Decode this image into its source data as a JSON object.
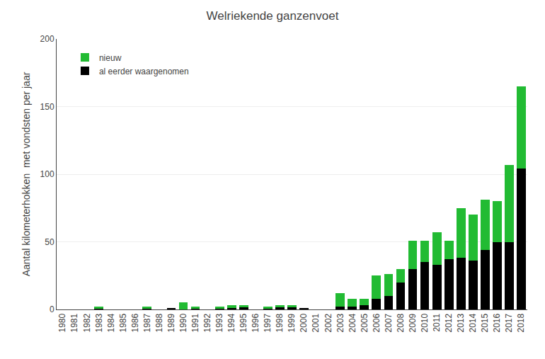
{
  "chart_data": {
    "type": "bar",
    "stacked": true,
    "title": "Welriekende ganzenvoet",
    "y_label": "Aantal kilometerhokken  met vondsten per jaar",
    "categories": [
      "1980",
      "1981",
      "1982",
      "1983",
      "1984",
      "1985",
      "1986",
      "1987",
      "1988",
      "1989",
      "1990",
      "1991",
      "1992",
      "1993",
      "1994",
      "1995",
      "1996",
      "1997",
      "1998",
      "1999",
      "2000",
      "2001",
      "2002",
      "2003",
      "2004",
      "2005",
      "2006",
      "2007",
      "2008",
      "2009",
      "2010",
      "2011",
      "2012",
      "2013",
      "2014",
      "2015",
      "2016",
      "2017",
      "2018"
    ],
    "series": [
      {
        "name": "al eerder waargenomen",
        "color": "#000000",
        "values": [
          0,
          0,
          0,
          1,
          0,
          0,
          0,
          1,
          0,
          1,
          0,
          1,
          0,
          1,
          1,
          2,
          0,
          1,
          2,
          2,
          1,
          0,
          0,
          2,
          2,
          3,
          8,
          10,
          20,
          30,
          35,
          33,
          37,
          38,
          36,
          44,
          50,
          50,
          104
        ]
      },
      {
        "name": "nieuw",
        "color": "#22bb33",
        "values": [
          0,
          0,
          0,
          1,
          0,
          0,
          0,
          1,
          0,
          0,
          5,
          1,
          0,
          1,
          2,
          1,
          0,
          1,
          1,
          1,
          0,
          0,
          0,
          10,
          6,
          5,
          17,
          16,
          10,
          21,
          16,
          24,
          14,
          37,
          34,
          37,
          30,
          57,
          61
        ]
      }
    ],
    "ylim": [
      0,
      200
    ],
    "yticks": [
      0,
      50,
      100,
      150,
      200
    ],
    "grid": true,
    "legend": "upper left"
  }
}
